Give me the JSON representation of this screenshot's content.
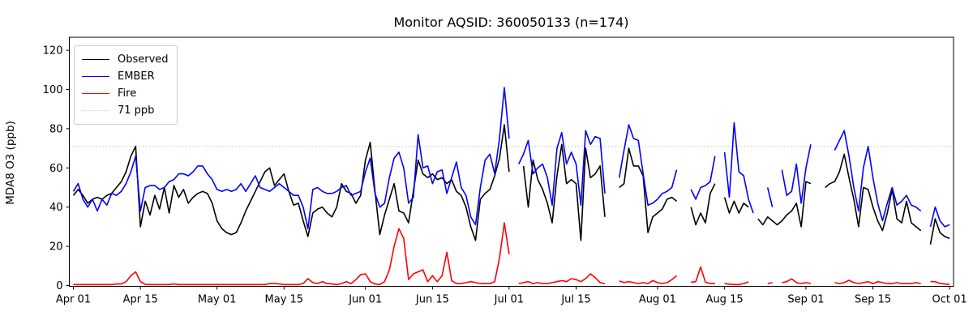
{
  "title": "Monitor AQSID: 360050133 (n=174)",
  "y_axis_label": "MDA8 O3 (ppb)",
  "legend": {
    "items": [
      {
        "label": "Observed",
        "color": "#000000",
        "line_style": "solid"
      },
      {
        "label": "EMBER",
        "color": "#0000ff",
        "line_style": "solid"
      },
      {
        "label": "Fire",
        "color": "#ff0000",
        "line_style": "solid"
      },
      {
        "label": "71 ppb",
        "color": "#d3d3d3",
        "line_style": "dotted"
      }
    ],
    "position": "upper-left"
  },
  "chart_data": {
    "type": "line",
    "title": "Monitor AQSID: 360050133 (n=174)",
    "xlabel": "",
    "ylabel": "MDA8 O3 (ppb)",
    "x_unit": "daily values, Apr 01 through Oct 01",
    "grid": false,
    "ylim": [
      -4,
      127
    ],
    "y_ticks": [
      0,
      20,
      40,
      60,
      80,
      100,
      120
    ],
    "x_ticks": [
      {
        "label": "Apr 01",
        "day": 0
      },
      {
        "label": "Apr 15",
        "day": 14
      },
      {
        "label": "May 01",
        "day": 30
      },
      {
        "label": "May 15",
        "day": 44
      },
      {
        "label": "Jun 01",
        "day": 61
      },
      {
        "label": "Jun 15",
        "day": 75
      },
      {
        "label": "Jul 01",
        "day": 91
      },
      {
        "label": "Jul 15",
        "day": 105
      },
      {
        "label": "Aug 01",
        "day": 122
      },
      {
        "label": "Aug 15",
        "day": 136
      },
      {
        "label": "Sep 01",
        "day": 153
      },
      {
        "label": "Sep 15",
        "day": 167
      },
      {
        "label": "Oct 01",
        "day": 183
      }
    ],
    "threshold": {
      "value": 71,
      "label": "71 ppb",
      "color": "#d3d3d3",
      "style": "dotted"
    },
    "series": [
      {
        "name": "Observed",
        "color": "#000000",
        "values": [
          46,
          49,
          46,
          42,
          44,
          45,
          44,
          46,
          47,
          50,
          53,
          58,
          66,
          71,
          30,
          43,
          36,
          46,
          39,
          50,
          37,
          51,
          45,
          49,
          42,
          45,
          47,
          48,
          47,
          42,
          33,
          29,
          27,
          26,
          27,
          32,
          38,
          43,
          48,
          53,
          58,
          60,
          51,
          54,
          57,
          48,
          41,
          42,
          33,
          25,
          37,
          39,
          40,
          37,
          35,
          40,
          52,
          48,
          47,
          42,
          46,
          64,
          73,
          48,
          26,
          36,
          44,
          52,
          38,
          37,
          32,
          48,
          64,
          57,
          55,
          57,
          54,
          55,
          52,
          54,
          48,
          46,
          40,
          30,
          23,
          44,
          47,
          49,
          56,
          65,
          82,
          58,
          null,
          null,
          61,
          40,
          64,
          54,
          49,
          42,
          32,
          56,
          72,
          52,
          54,
          52,
          23,
          70,
          55,
          57,
          61,
          35,
          null,
          null,
          50,
          52,
          70,
          61,
          61,
          56,
          27,
          35,
          37,
          39,
          44,
          45,
          43,
          null,
          null,
          40,
          31,
          37,
          32,
          47,
          52,
          null,
          45,
          37,
          43,
          37,
          42,
          40,
          null,
          34,
          31,
          35,
          33,
          31,
          33,
          36,
          38,
          42,
          30,
          53,
          52,
          null,
          null,
          50,
          52,
          53,
          58,
          67,
          55,
          44,
          30,
          50,
          49,
          40,
          33,
          28,
          37,
          49,
          34,
          32,
          43,
          32,
          30,
          28,
          null,
          21,
          34,
          27,
          25,
          24
        ]
      },
      {
        "name": "EMBER",
        "color": "#0000ff",
        "values": [
          48,
          52,
          44,
          40,
          44,
          38,
          44,
          41,
          47,
          46,
          48,
          52,
          58,
          66,
          38,
          50,
          51,
          51,
          49,
          50,
          53,
          54,
          57,
          57,
          56,
          58,
          61,
          61,
          57,
          54,
          49,
          48,
          49,
          48,
          49,
          52,
          48,
          52,
          56,
          50,
          49,
          48,
          50,
          52,
          50,
          48,
          46,
          46,
          40,
          29,
          49,
          50,
          48,
          47,
          47,
          48,
          50,
          51,
          46,
          47,
          48,
          58,
          65,
          47,
          40,
          42,
          55,
          65,
          68,
          60,
          42,
          45,
          77,
          60,
          61,
          52,
          58,
          59,
          47,
          55,
          63,
          50,
          46,
          35,
          31,
          50,
          64,
          67,
          57,
          75,
          101,
          75,
          null,
          62,
          67,
          74,
          57,
          60,
          62,
          55,
          41,
          70,
          78,
          62,
          68,
          62,
          41,
          79,
          72,
          76,
          75,
          47,
          null,
          null,
          55,
          69,
          82,
          75,
          74,
          57,
          41,
          42,
          44,
          47,
          48,
          50,
          59,
          null,
          null,
          49,
          44,
          50,
          51,
          53,
          66,
          null,
          68,
          45,
          83,
          58,
          56,
          44,
          37,
          null,
          null,
          50,
          40,
          null,
          59,
          46,
          48,
          62,
          42,
          60,
          72,
          null,
          null,
          null,
          null,
          69,
          74,
          79,
          66,
          50,
          38,
          60,
          71,
          55,
          42,
          33,
          42,
          50,
          41,
          43,
          46,
          41,
          40,
          38,
          null,
          30,
          40,
          33,
          30,
          31
        ]
      },
      {
        "name": "Fire",
        "color": "#ff0000",
        "values": [
          0.5,
          0.5,
          0.5,
          0.5,
          0.5,
          0.5,
          0.5,
          0.5,
          0.5,
          0.8,
          0.8,
          2,
          5,
          7,
          2,
          0.6,
          0.5,
          0.5,
          0.5,
          0.5,
          0.5,
          0.8,
          0.5,
          0.5,
          0.5,
          0.5,
          0.5,
          0.5,
          0.5,
          0.5,
          0.5,
          0.5,
          0.5,
          0.5,
          0.5,
          0.5,
          0.5,
          0.5,
          0.5,
          0.5,
          0.5,
          1,
          1,
          0.8,
          0.5,
          0.5,
          0.5,
          0.5,
          1,
          3.5,
          1.5,
          1,
          2,
          1,
          0.8,
          0.5,
          1,
          2,
          1,
          3,
          5.5,
          6,
          2,
          0.8,
          0.5,
          2,
          8,
          20,
          29,
          24,
          3,
          6,
          7,
          8,
          2,
          5,
          2,
          5,
          17,
          2.5,
          1,
          1,
          1.5,
          2,
          1.5,
          1,
          1,
          1,
          2,
          14,
          32,
          16,
          null,
          1,
          1.5,
          2,
          1,
          1.5,
          1,
          1,
          1.5,
          2,
          2.5,
          2,
          3.5,
          3,
          2,
          3.5,
          6,
          4,
          1.5,
          1,
          null,
          null,
          2.3,
          1.5,
          2,
          1.5,
          1,
          1.5,
          1,
          2.5,
          1.5,
          1,
          1.5,
          3,
          5,
          null,
          null,
          1.7,
          2,
          9.5,
          1.7,
          1,
          1,
          null,
          1,
          0.7,
          0.5,
          0.5,
          1,
          1.9,
          null,
          null,
          null,
          1,
          1.5,
          null,
          1.5,
          2,
          3.4,
          1.5,
          1,
          1.5,
          1,
          null,
          null,
          null,
          null,
          1.5,
          1,
          1.5,
          2.7,
          1.5,
          1,
          1.5,
          2,
          1,
          2,
          1.5,
          1,
          1,
          1.5,
          1,
          1,
          1,
          1.5,
          1,
          null,
          2,
          2,
          1,
          0.8,
          0.5
        ]
      }
    ]
  }
}
